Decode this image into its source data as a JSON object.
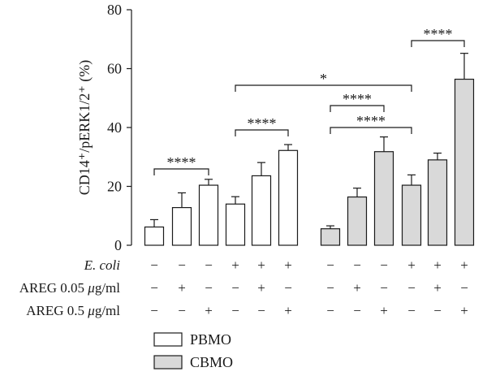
{
  "chart_data": {
    "type": "bar",
    "ylabel": "CD14⁺/pERK1/2⁺ (%)",
    "ylim": [
      0,
      80
    ],
    "yticks": [
      0,
      20,
      40,
      60,
      80
    ],
    "grid": false,
    "legend_position": "bottom-center",
    "series": [
      {
        "name": "PBMO",
        "fill": "#ffffff",
        "values": [
          6.2,
          12.8,
          20.4,
          14.0,
          23.6,
          32.2
        ],
        "errors": [
          2.5,
          5.0,
          2.0,
          2.5,
          4.5,
          2.0
        ]
      },
      {
        "name": "CBMO",
        "fill": "#d9d9d9",
        "values": [
          5.6,
          16.4,
          31.8,
          20.4,
          29.0,
          56.4
        ],
        "errors": [
          1.0,
          3.0,
          5.0,
          3.5,
          2.3,
          8.8
        ]
      }
    ],
    "conditions": [
      {
        "label": "E. coli",
        "italic_part": "E. coli",
        "rest": "",
        "signs": [
          "−",
          "−",
          "−",
          "+",
          "+",
          "+",
          "−",
          "−",
          "−",
          "+",
          "+",
          "+"
        ]
      },
      {
        "label": "AREG 0.05 μg/ml",
        "prefix": "AREG 0.05 ",
        "unit_mu": "μ",
        "unit_rest": "g/ml",
        "signs": [
          "−",
          "+",
          "−",
          "−",
          "+",
          "−",
          "−",
          "+",
          "−",
          "−",
          "+",
          "−"
        ]
      },
      {
        "label": "AREG 0.5 μg/ml",
        "prefix": "AREG 0.5 ",
        "unit_mu": "μ",
        "unit_rest": "g/ml",
        "signs": [
          "−",
          "−",
          "+",
          "−",
          "−",
          "+",
          "−",
          "−",
          "+",
          "−",
          "−",
          "+"
        ]
      }
    ],
    "significance": [
      {
        "from": 0,
        "to": 2,
        "label": "****",
        "level": 1
      },
      {
        "from": 3,
        "to": 5,
        "label": "****",
        "level": 1
      },
      {
        "from": 3,
        "to": 9,
        "label": "*",
        "level": 3
      },
      {
        "from": 6,
        "to": 8,
        "label": "****",
        "level": 2
      },
      {
        "from": 6,
        "to": 9,
        "label": "****",
        "level": 1
      },
      {
        "from": 9,
        "to": 11,
        "label": "****",
        "level": 4
      }
    ]
  }
}
